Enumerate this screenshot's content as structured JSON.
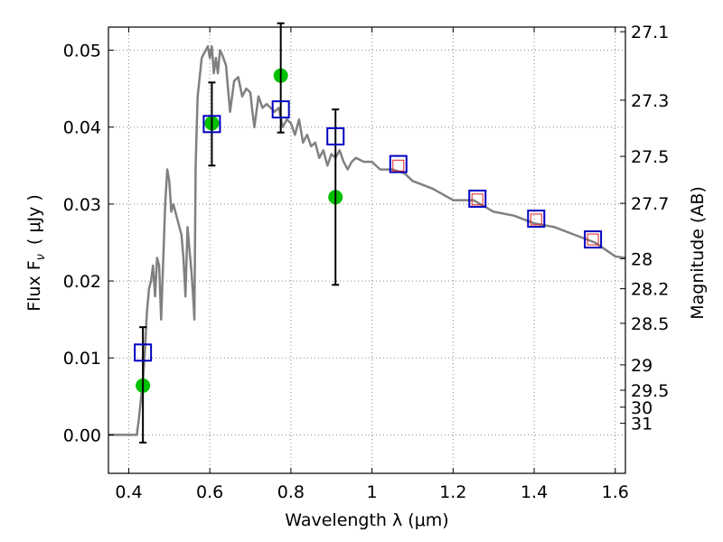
{
  "chart_data": {
    "type": "scatter",
    "xlabel": "Wavelength  λ (μm)",
    "ylabel": "Flux  F",
    "ylabel_sub": "ν",
    "ylabel_unit": "(  μJy )",
    "ylabel_right": "Magnitude (AB)",
    "xlim": [
      0.35,
      1.625
    ],
    "ylim": [
      -0.005,
      0.053
    ],
    "grid": true,
    "x_ticks": [
      0.4,
      0.6,
      0.8,
      1.0,
      1.2,
      1.4,
      1.6
    ],
    "x_tick_labels": [
      "0.4",
      "0.6",
      "0.8",
      "1",
      "1.2",
      "1.4",
      "1.6"
    ],
    "y_ticks": [
      0.0,
      0.01,
      0.02,
      0.03,
      0.04,
      0.05
    ],
    "y_tick_labels": [
      "0.00",
      "0.01",
      "0.02",
      "0.03",
      "0.04",
      "0.05"
    ],
    "right_ticks": [
      {
        "label": "27.1",
        "flux": 0.0524
      },
      {
        "label": "27.3",
        "flux": 0.0435
      },
      {
        "label": "27.5",
        "flux": 0.0362
      },
      {
        "label": "27.7",
        "flux": 0.0301
      },
      {
        "label": "28",
        "flux": 0.0229
      },
      {
        "label": "28.2",
        "flux": 0.019
      },
      {
        "label": "28.5",
        "flux": 0.0145
      },
      {
        "label": "29",
        "flux": 0.0091
      },
      {
        "label": "29.5",
        "flux": 0.0058
      },
      {
        "label": "30",
        "flux": 0.0036
      },
      {
        "label": "31",
        "flux": 0.0015
      }
    ],
    "series": [
      {
        "type": "line",
        "color": "#808080",
        "points": [
          [
            0.35,
            0.0
          ],
          [
            0.4,
            0.0
          ],
          [
            0.42,
            0.0
          ],
          [
            0.425,
            0.002
          ],
          [
            0.435,
            0.007
          ],
          [
            0.44,
            0.011
          ],
          [
            0.445,
            0.016
          ],
          [
            0.45,
            0.019
          ],
          [
            0.455,
            0.02
          ],
          [
            0.46,
            0.022
          ],
          [
            0.465,
            0.018
          ],
          [
            0.47,
            0.023
          ],
          [
            0.475,
            0.022
          ],
          [
            0.48,
            0.015
          ],
          [
            0.49,
            0.03
          ],
          [
            0.495,
            0.0345
          ],
          [
            0.5,
            0.033
          ],
          [
            0.505,
            0.029
          ],
          [
            0.51,
            0.03
          ],
          [
            0.52,
            0.028
          ],
          [
            0.53,
            0.026
          ],
          [
            0.535,
            0.023
          ],
          [
            0.54,
            0.018
          ],
          [
            0.545,
            0.027
          ],
          [
            0.55,
            0.024
          ],
          [
            0.555,
            0.021
          ],
          [
            0.56,
            0.017
          ],
          [
            0.562,
            0.015
          ],
          [
            0.565,
            0.035
          ],
          [
            0.57,
            0.044
          ],
          [
            0.58,
            0.049
          ],
          [
            0.59,
            0.05
          ],
          [
            0.595,
            0.0505
          ],
          [
            0.6,
            0.049
          ],
          [
            0.605,
            0.0505
          ],
          [
            0.61,
            0.047
          ],
          [
            0.615,
            0.049
          ],
          [
            0.62,
            0.047
          ],
          [
            0.625,
            0.05
          ],
          [
            0.63,
            0.0495
          ],
          [
            0.64,
            0.048
          ],
          [
            0.645,
            0.045
          ],
          [
            0.65,
            0.042
          ],
          [
            0.66,
            0.046
          ],
          [
            0.67,
            0.0465
          ],
          [
            0.68,
            0.044
          ],
          [
            0.69,
            0.045
          ],
          [
            0.7,
            0.0445
          ],
          [
            0.705,
            0.042
          ],
          [
            0.71,
            0.04
          ],
          [
            0.72,
            0.044
          ],
          [
            0.73,
            0.0425
          ],
          [
            0.74,
            0.043
          ],
          [
            0.75,
            0.0425
          ],
          [
            0.76,
            0.042
          ],
          [
            0.77,
            0.0425
          ],
          [
            0.78,
            0.04
          ],
          [
            0.79,
            0.041
          ],
          [
            0.8,
            0.0405
          ],
          [
            0.81,
            0.039
          ],
          [
            0.82,
            0.041
          ],
          [
            0.83,
            0.038
          ],
          [
            0.84,
            0.039
          ],
          [
            0.85,
            0.0375
          ],
          [
            0.86,
            0.038
          ],
          [
            0.87,
            0.036
          ],
          [
            0.88,
            0.037
          ],
          [
            0.89,
            0.035
          ],
          [
            0.9,
            0.0365
          ],
          [
            0.91,
            0.036
          ],
          [
            0.92,
            0.037
          ],
          [
            0.93,
            0.0355
          ],
          [
            0.94,
            0.0345
          ],
          [
            0.95,
            0.0355
          ],
          [
            0.96,
            0.036
          ],
          [
            0.98,
            0.0355
          ],
          [
            1.0,
            0.0355
          ],
          [
            1.02,
            0.0345
          ],
          [
            1.05,
            0.0345
          ],
          [
            1.08,
            0.034
          ],
          [
            1.1,
            0.033
          ],
          [
            1.15,
            0.032
          ],
          [
            1.2,
            0.0305
          ],
          [
            1.25,
            0.0305
          ],
          [
            1.3,
            0.029
          ],
          [
            1.35,
            0.0285
          ],
          [
            1.4,
            0.0275
          ],
          [
            1.45,
            0.027
          ],
          [
            1.5,
            0.026
          ],
          [
            1.55,
            0.025
          ],
          [
            1.6,
            0.0232
          ],
          [
            1.625,
            0.023
          ]
        ]
      },
      {
        "type": "points",
        "marker": "circle",
        "color": "#00c000",
        "points": [
          [
            0.435,
            0.0064
          ],
          [
            0.605,
            0.0405
          ],
          [
            0.775,
            0.0467
          ],
          [
            0.91,
            0.0309
          ]
        ]
      },
      {
        "type": "errorbars",
        "color": "#000000",
        "points": [
          {
            "x": 0.435,
            "low": -0.001,
            "high": 0.014
          },
          {
            "x": 0.605,
            "low": 0.035,
            "high": 0.0458
          },
          {
            "x": 0.775,
            "low": 0.0393,
            "high": 0.0535
          },
          {
            "x": 0.91,
            "low": 0.0195,
            "high": 0.0423
          }
        ]
      },
      {
        "type": "points",
        "marker": "square",
        "color": "#0000c0",
        "points": [
          [
            0.435,
            0.0107
          ],
          [
            0.605,
            0.0404
          ],
          [
            0.775,
            0.0423
          ],
          [
            0.91,
            0.0388
          ],
          [
            1.065,
            0.0352
          ],
          [
            1.26,
            0.0307
          ],
          [
            1.405,
            0.0281
          ],
          [
            1.545,
            0.0254
          ]
        ]
      },
      {
        "type": "points",
        "marker": "square-small",
        "color": "#e02020",
        "points": [
          [
            1.065,
            0.035
          ],
          [
            1.26,
            0.0306
          ],
          [
            1.405,
            0.028
          ],
          [
            1.545,
            0.0254
          ]
        ]
      }
    ]
  }
}
